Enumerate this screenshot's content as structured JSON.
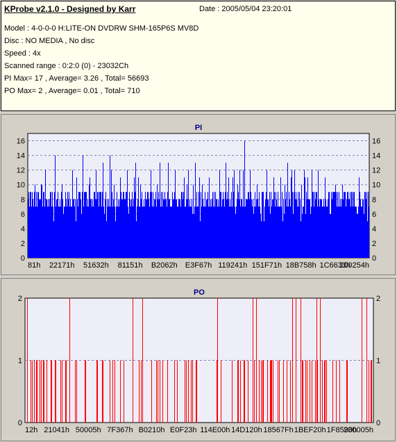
{
  "info": {
    "title": "KProbe v2.1.0 - Designed by Karr",
    "date": "Date : 2005/05/04 23:20:01",
    "lines": [
      "Model : 4-0-0-0 H:LITE-ON DVDRW SHM-165P6S MV8D",
      "Disc : NO MEDIA , No disc",
      "Speed : 4x",
      "Scanned range : 0:2:0 (0) - 23032Ch",
      "PI Max= 17 , Average= 3.26 , Total= 56693",
      "PO Max= 2 , Average= 0.01 , Total= 710"
    ]
  },
  "chart_data": [
    {
      "type": "bar",
      "title": "PI",
      "color": "#0000ff",
      "ylim": [
        0,
        17
      ],
      "yticks": [
        0,
        2,
        4,
        6,
        8,
        10,
        12,
        14,
        16
      ],
      "xticks": [
        "81h",
        "22171h",
        "51632h",
        "81151h",
        "B2062h",
        "E3F67h",
        "119241h",
        "151F71h",
        "18B758h",
        "1C6633h",
        "200254h"
      ],
      "baseline": 7,
      "values_summary": "dense bars mostly 7-9 with spikes",
      "spikes": [
        [
          0.02,
          10
        ],
        [
          0.05,
          12
        ],
        [
          0.08,
          14
        ],
        [
          0.1,
          10
        ],
        [
          0.13,
          12
        ],
        [
          0.16,
          14
        ],
        [
          0.18,
          11
        ],
        [
          0.2,
          12
        ],
        [
          0.22,
          13
        ],
        [
          0.24,
          14
        ],
        [
          0.27,
          10
        ],
        [
          0.29,
          12
        ],
        [
          0.31,
          11
        ],
        [
          0.33,
          10
        ],
        [
          0.36,
          12
        ],
        [
          0.39,
          9
        ],
        [
          0.41,
          13
        ],
        [
          0.43,
          12
        ],
        [
          0.455,
          17
        ],
        [
          0.47,
          12
        ],
        [
          0.49,
          13
        ],
        [
          0.51,
          10
        ],
        [
          0.53,
          11
        ],
        [
          0.56,
          12
        ],
        [
          0.58,
          13
        ],
        [
          0.6,
          11
        ],
        [
          0.62,
          12
        ],
        [
          0.635,
          16
        ],
        [
          0.65,
          12
        ],
        [
          0.67,
          10
        ],
        [
          0.7,
          12
        ],
        [
          0.72,
          11
        ],
        [
          0.74,
          12
        ],
        [
          0.76,
          13
        ],
        [
          0.78,
          12
        ],
        [
          0.8,
          10
        ],
        [
          0.82,
          11
        ],
        [
          0.85,
          12
        ],
        [
          0.87,
          11
        ],
        [
          0.9,
          10
        ],
        [
          0.92,
          10
        ],
        [
          0.95,
          10
        ],
        [
          0.97,
          11
        ]
      ]
    },
    {
      "type": "bar",
      "title": "PO",
      "color": "#ff0000",
      "ylim": [
        0,
        2
      ],
      "yticks": [
        0,
        1,
        2
      ],
      "xticks": [
        "12h",
        "21041h",
        "50005h",
        "7F367h",
        "B0210h",
        "E0F23h",
        "114E00h",
        "14D120h",
        "18567Fh",
        "1BEF20h",
        "1F8590h",
        "230005h"
      ],
      "twos": [
        0.005,
        0.128,
        0.308,
        0.336,
        0.552,
        0.653,
        0.664,
        0.766,
        0.777,
        0.79,
        0.836,
        0.846,
        0.967,
        0.981
      ]
    }
  ]
}
